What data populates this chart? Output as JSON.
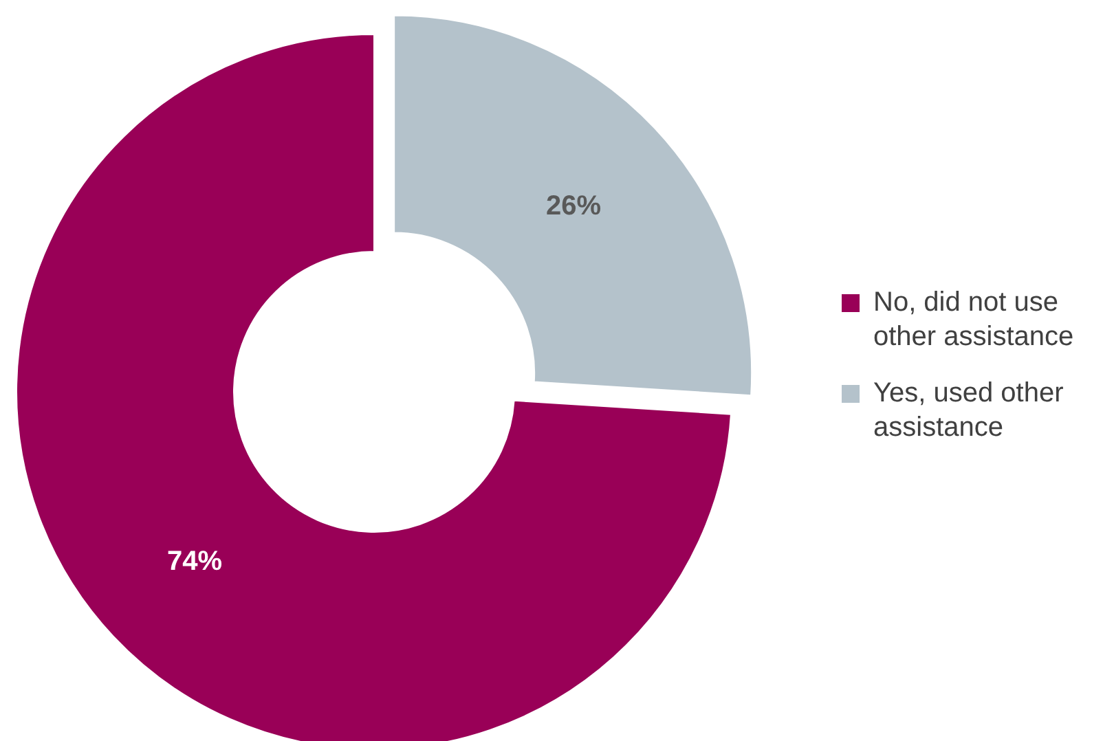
{
  "chart_data": {
    "type": "donut",
    "categories": [
      "No, did not use other assistance",
      "Yes, used other assistance"
    ],
    "values": [
      74,
      26
    ],
    "colors": [
      "#990057",
      "#b4c2cb"
    ],
    "value_labels": [
      "74%",
      "26%"
    ],
    "legend": "right"
  }
}
